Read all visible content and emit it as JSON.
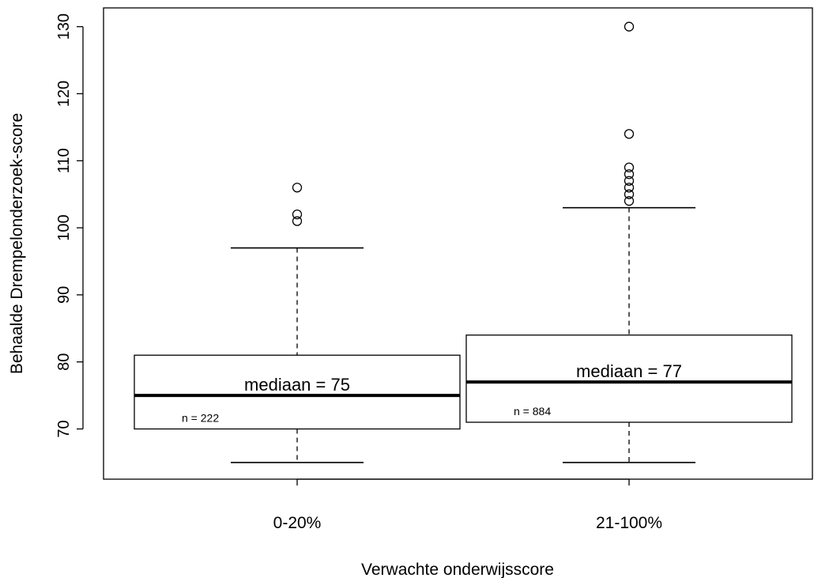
{
  "chart_data": {
    "type": "boxplot",
    "title": "",
    "xlabel": "Verwachte onderwijsscore",
    "ylabel": "Behaalde Drempelonderzoek-score",
    "ylim": [
      62,
      132
    ],
    "yticks": [
      70,
      80,
      90,
      100,
      110,
      120,
      130
    ],
    "grid": false,
    "categories": [
      "0-20%",
      "21-100%"
    ],
    "boxes": [
      {
        "category": "0-20%",
        "whisker_low": 65,
        "q1": 70,
        "median": 75,
        "q3": 81,
        "whisker_high": 97,
        "outliers": [
          101,
          102,
          106
        ],
        "median_label": "mediaan =  75",
        "n_label": "n =  222"
      },
      {
        "category": "21-100%",
        "whisker_low": 65,
        "q1": 71,
        "median": 77,
        "q3": 84,
        "whisker_high": 103,
        "outliers": [
          104,
          105,
          106,
          107,
          108,
          109,
          114,
          130
        ],
        "median_label": "mediaan =  77",
        "n_label": "n =  884"
      }
    ]
  }
}
